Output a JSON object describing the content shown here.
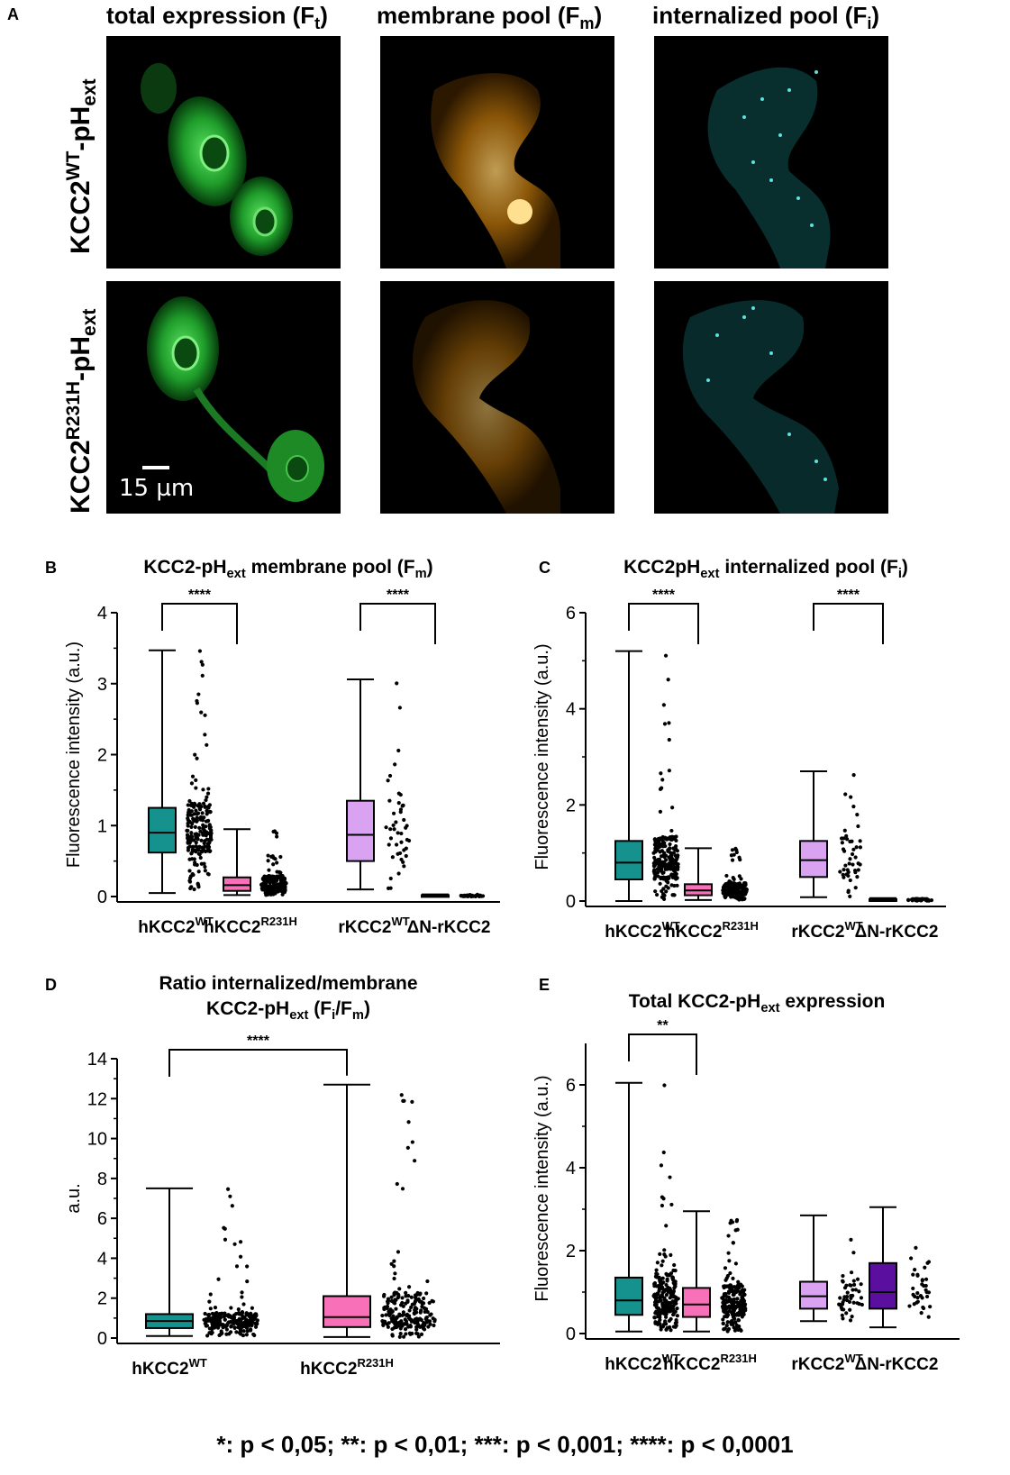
{
  "figure": {
    "panel_letters": {
      "a": "A",
      "b": "B",
      "c": "C",
      "d": "D",
      "e": "E"
    },
    "col_titles": [
      {
        "main": "total expression (F",
        "sub": "t",
        "end": ")"
      },
      {
        "main": "membrane pool (F",
        "sub": "m",
        "end": ")"
      },
      {
        "main": "internalized pool (F",
        "sub": "i",
        "end": ")"
      }
    ],
    "row_titles": [
      {
        "base": "KCC2",
        "sup": "WT",
        "mid": "-pH",
        "sub": "ext"
      },
      {
        "base": "KCC2",
        "sup": "R231H",
        "mid": "-pH",
        "sub": "ext"
      }
    ],
    "scale_label": "15 µm",
    "footer": "*: p < 0,05; **: p < 0,01; ***: p < 0,001; ****: p < 0,0001",
    "colors": {
      "green_channel": "#2fc43a",
      "orange_channel": "#f0a020",
      "cyan_channel": "#3cc8c8",
      "teal_box": "#15928e",
      "pink_box": "#f870b8",
      "lilac_box": "#d9a3f2",
      "purple_box": "#5a0f9e"
    }
  },
  "chart_data": [
    {
      "id": "B",
      "type": "box",
      "title": {
        "pre": "KCC2-pH",
        "sub1": "ext",
        "mid": " membrane pool (F",
        "sub2": "m",
        "post": ")"
      },
      "ylabel": "Fluorescence intensity (a.u.)",
      "ylim": [
        0,
        4
      ],
      "yticks": [
        0,
        1,
        2,
        3,
        4
      ],
      "categories": [
        {
          "base": "hKCC2",
          "sup": "WT"
        },
        {
          "base": "hKCC2",
          "sup": "R231H"
        },
        {
          "base": "rKCC2",
          "sup": "WT"
        },
        {
          "base": "ΔN-rKCC2",
          "sup": ""
        }
      ],
      "boxes": [
        {
          "min": 0.05,
          "q1": 0.62,
          "median": 0.9,
          "q3": 1.25,
          "max": 3.47,
          "color": "#15928e"
        },
        {
          "min": 0.02,
          "q1": 0.08,
          "median": 0.16,
          "q3": 0.27,
          "max": 0.95,
          "color": "#f870b8"
        },
        {
          "min": 0.1,
          "q1": 0.5,
          "median": 0.87,
          "q3": 1.35,
          "max": 3.06,
          "color": "#d9a3f2"
        },
        {
          "min": 0.0,
          "q1": 0.005,
          "median": 0.01,
          "q3": 0.02,
          "max": 0.03,
          "color": "#5a0f9e"
        }
      ],
      "significance": [
        {
          "from": 0,
          "to": 1,
          "label": "****"
        },
        {
          "from": 2,
          "to": 3,
          "label": "****"
        }
      ]
    },
    {
      "id": "C",
      "type": "box",
      "title": {
        "pre": "KCC2pH",
        "sub1": "ext",
        "mid": " internalized pool (F",
        "sub2": "i",
        "post": ")"
      },
      "ylabel": "Fluorescence intensity (a.u.)",
      "ylim": [
        0,
        6
      ],
      "yticks": [
        0,
        2,
        4,
        6
      ],
      "categories": [
        {
          "base": "hKCC2",
          "sup": "WT"
        },
        {
          "base": "hKCC2",
          "sup": "R231H"
        },
        {
          "base": "rKCC2",
          "sup": "WT"
        },
        {
          "base": "ΔN-rKCC2",
          "sup": ""
        }
      ],
      "boxes": [
        {
          "min": 0.0,
          "q1": 0.45,
          "median": 0.8,
          "q3": 1.25,
          "max": 5.2,
          "color": "#15928e"
        },
        {
          "min": 0.02,
          "q1": 0.12,
          "median": 0.22,
          "q3": 0.35,
          "max": 1.1,
          "color": "#f870b8"
        },
        {
          "min": 0.08,
          "q1": 0.5,
          "median": 0.85,
          "q3": 1.25,
          "max": 2.7,
          "color": "#d9a3f2"
        },
        {
          "min": 0.0,
          "q1": 0.01,
          "median": 0.02,
          "q3": 0.04,
          "max": 0.06,
          "color": "#5a0f9e"
        }
      ],
      "significance": [
        {
          "from": 0,
          "to": 1,
          "label": "****"
        },
        {
          "from": 2,
          "to": 3,
          "label": "****"
        }
      ]
    },
    {
      "id": "D",
      "type": "box",
      "title": {
        "line1": "Ratio internalized/membrane",
        "pre": "KCC2-pH",
        "sub1": "ext",
        "mid": " (F",
        "sub2": "i",
        "mid2": "/F",
        "sub3": "m",
        "post": ")"
      },
      "ylabel": "a.u.",
      "ylim": [
        0,
        14
      ],
      "yticks": [
        0,
        2,
        4,
        6,
        8,
        10,
        12,
        14
      ],
      "categories": [
        {
          "base": "hKCC2",
          "sup": "WT"
        },
        {
          "base": "hKCC2",
          "sup": "R231H"
        }
      ],
      "boxes": [
        {
          "min": 0.1,
          "q1": 0.5,
          "median": 0.85,
          "q3": 1.2,
          "max": 7.5,
          "color": "#15928e"
        },
        {
          "min": 0.05,
          "q1": 0.55,
          "median": 1.05,
          "q3": 2.1,
          "max": 12.7,
          "color": "#f870b8"
        }
      ],
      "significance": [
        {
          "from": 0,
          "to": 1,
          "label": "****"
        }
      ]
    },
    {
      "id": "E",
      "type": "box",
      "title": {
        "pre": "Total KCC2-pH",
        "sub1": "ext",
        "post": " expression"
      },
      "ylabel": "Fluorescence intensity (a.u.)",
      "ylim": [
        0,
        7
      ],
      "yticks": [
        0,
        2,
        4,
        6
      ],
      "categories": [
        {
          "base": "hKCC2",
          "sup": "WT"
        },
        {
          "base": "hKCC2",
          "sup": "R231H"
        },
        {
          "base": "rKCC2",
          "sup": "WT"
        },
        {
          "base": "ΔN-rKCC2",
          "sup": ""
        }
      ],
      "boxes": [
        {
          "min": 0.05,
          "q1": 0.45,
          "median": 0.8,
          "q3": 1.35,
          "max": 6.05,
          "color": "#15928e"
        },
        {
          "min": 0.05,
          "q1": 0.4,
          "median": 0.7,
          "q3": 1.1,
          "max": 2.95,
          "color": "#f870b8"
        },
        {
          "min": 0.3,
          "q1": 0.6,
          "median": 0.9,
          "q3": 1.25,
          "max": 2.85,
          "color": "#d9a3f2"
        },
        {
          "min": 0.15,
          "q1": 0.6,
          "median": 1.0,
          "q3": 1.7,
          "max": 3.05,
          "color": "#5a0f9e"
        }
      ],
      "significance": [
        {
          "from": 0,
          "to": 1,
          "label": "**"
        }
      ]
    }
  ]
}
